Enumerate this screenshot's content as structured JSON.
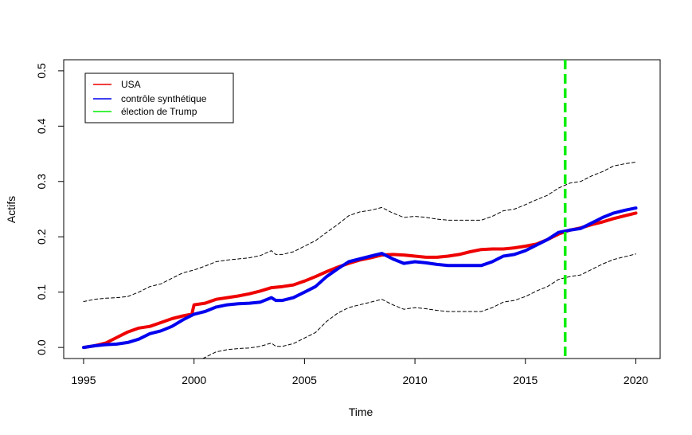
{
  "chart_data": {
    "type": "line",
    "title": "",
    "xlabel": "Time",
    "ylabel": "Actifs",
    "xlim": [
      1994.1,
      2021.1
    ],
    "ylim": [
      -0.02,
      0.52
    ],
    "xticks": [
      1995,
      2000,
      2005,
      2010,
      2015,
      2020
    ],
    "yticks": [
      0.0,
      0.1,
      0.2,
      0.3,
      0.4,
      0.5
    ],
    "xtick_labels": [
      "1995",
      "2000",
      "2005",
      "2010",
      "2015",
      "2020"
    ],
    "ytick_labels": [
      "0.0",
      "0.1",
      "0.2",
      "0.3",
      "0.4",
      "0.5"
    ],
    "legend_position": "top-left",
    "vline": {
      "x": 2016.8,
      "color": "#00ee00"
    },
    "series": [
      {
        "name": "USA",
        "color": "#ee0000",
        "x": [
          1995,
          1995.5,
          1996,
          1996.5,
          1997,
          1997.5,
          1998,
          1998.5,
          1999,
          1999.5,
          1999.9,
          2000,
          2000.5,
          2001,
          2001.5,
          2002,
          2002.5,
          2003,
          2003.5,
          2004,
          2004.5,
          2005,
          2005.5,
          2006,
          2006.5,
          2007,
          2007.5,
          2008,
          2008.5,
          2009,
          2009.5,
          2010,
          2010.5,
          2011,
          2011.5,
          2012,
          2012.5,
          2013,
          2013.5,
          2014,
          2014.5,
          2015,
          2015.5,
          2016,
          2016.5,
          2017,
          2017.5,
          2018,
          2018.5,
          2019,
          2019.5,
          2020
        ],
        "values": [
          0,
          0.003,
          0.008,
          0.018,
          0.028,
          0.035,
          0.038,
          0.045,
          0.052,
          0.057,
          0.06,
          0.077,
          0.08,
          0.087,
          0.09,
          0.093,
          0.097,
          0.102,
          0.108,
          0.11,
          0.113,
          0.12,
          0.128,
          0.137,
          0.145,
          0.152,
          0.158,
          0.162,
          0.167,
          0.168,
          0.167,
          0.165,
          0.163,
          0.163,
          0.165,
          0.168,
          0.173,
          0.177,
          0.178,
          0.178,
          0.18,
          0.183,
          0.187,
          0.195,
          0.205,
          0.212,
          0.216,
          0.222,
          0.227,
          0.233,
          0.238,
          0.243
        ]
      },
      {
        "name": "contrôle synthétique",
        "color": "#0000ee",
        "x": [
          1995,
          1995.5,
          1996,
          1996.5,
          1997,
          1997.5,
          1998,
          1998.5,
          1999,
          1999.5,
          2000,
          2000.5,
          2001,
          2001.5,
          2002,
          2002.5,
          2003,
          2003.5,
          2003.7,
          2004,
          2004.5,
          2005,
          2005.5,
          2006,
          2006.5,
          2007,
          2007.5,
          2008,
          2008.5,
          2009,
          2009.5,
          2010,
          2010.5,
          2011,
          2011.5,
          2012,
          2012.5,
          2013,
          2013.5,
          2014,
          2014.5,
          2015,
          2015.5,
          2016,
          2016.5,
          2017,
          2017.5,
          2018,
          2018.5,
          2019,
          2019.5,
          2020
        ],
        "values": [
          0,
          0.003,
          0.005,
          0.006,
          0.009,
          0.015,
          0.025,
          0.03,
          0.038,
          0.05,
          0.06,
          0.065,
          0.073,
          0.077,
          0.079,
          0.08,
          0.082,
          0.09,
          0.085,
          0.085,
          0.09,
          0.1,
          0.11,
          0.128,
          0.142,
          0.155,
          0.16,
          0.165,
          0.17,
          0.16,
          0.152,
          0.155,
          0.153,
          0.15,
          0.148,
          0.148,
          0.148,
          0.148,
          0.155,
          0.165,
          0.168,
          0.175,
          0.185,
          0.195,
          0.208,
          0.212,
          0.215,
          0.225,
          0.235,
          0.243,
          0.248,
          0.252
        ]
      },
      {
        "name": "",
        "color": "#000000",
        "dashed": true,
        "x": [
          1995,
          1995.5,
          1996,
          1996.5,
          1997,
          1997.5,
          1998,
          1998.5,
          1999,
          1999.5,
          2000,
          2000.5,
          2001,
          2001.5,
          2002,
          2002.5,
          2003,
          2003.5,
          2003.7,
          2004,
          2004.5,
          2005,
          2005.5,
          2006,
          2006.5,
          2007,
          2007.5,
          2008,
          2008.5,
          2009,
          2009.5,
          2010,
          2010.5,
          2011,
          2011.5,
          2012,
          2012.5,
          2013,
          2013.5,
          2014,
          2014.5,
          2015,
          2015.5,
          2016,
          2016.5,
          2017,
          2017.5,
          2018,
          2018.5,
          2019,
          2019.5,
          2020
        ],
        "values": [
          0.083,
          0.087,
          0.089,
          0.09,
          0.092,
          0.1,
          0.11,
          0.115,
          0.125,
          0.135,
          0.14,
          0.147,
          0.155,
          0.158,
          0.16,
          0.162,
          0.166,
          0.175,
          0.168,
          0.168,
          0.173,
          0.183,
          0.193,
          0.208,
          0.222,
          0.238,
          0.245,
          0.248,
          0.253,
          0.243,
          0.235,
          0.237,
          0.235,
          0.232,
          0.23,
          0.23,
          0.23,
          0.23,
          0.237,
          0.247,
          0.25,
          0.258,
          0.267,
          0.275,
          0.288,
          0.297,
          0.3,
          0.31,
          0.318,
          0.328,
          0.332,
          0.335
        ]
      },
      {
        "name": "",
        "color": "#000000",
        "dashed": true,
        "x": [
          2000.4,
          2000.8,
          2001,
          2001.5,
          2002,
          2002.5,
          2003,
          2003.5,
          2003.7,
          2004,
          2004.5,
          2005,
          2005.5,
          2006,
          2006.5,
          2007,
          2007.5,
          2008,
          2008.5,
          2009,
          2009.5,
          2010,
          2010.5,
          2011,
          2011.5,
          2012,
          2012.5,
          2013,
          2013.5,
          2014,
          2014.5,
          2015,
          2015.5,
          2016,
          2016.5,
          2017,
          2017.5,
          2018,
          2018.5,
          2019,
          2019.5,
          2020
        ],
        "values": [
          -0.02,
          -0.012,
          -0.008,
          -0.004,
          -0.002,
          -0.001,
          0.002,
          0.008,
          0.002,
          0.002,
          0.007,
          0.017,
          0.027,
          0.047,
          0.062,
          0.072,
          0.077,
          0.082,
          0.087,
          0.077,
          0.069,
          0.072,
          0.07,
          0.067,
          0.065,
          0.065,
          0.065,
          0.065,
          0.072,
          0.082,
          0.085,
          0.092,
          0.102,
          0.11,
          0.123,
          0.128,
          0.131,
          0.141,
          0.151,
          0.159,
          0.164,
          0.169
        ]
      }
    ],
    "legend": [
      {
        "label": "USA",
        "color": "#ee0000"
      },
      {
        "label": "contrôle synthétique",
        "color": "#0000ee"
      },
      {
        "label": "élection de Trump",
        "color": "#00ee00"
      }
    ]
  }
}
